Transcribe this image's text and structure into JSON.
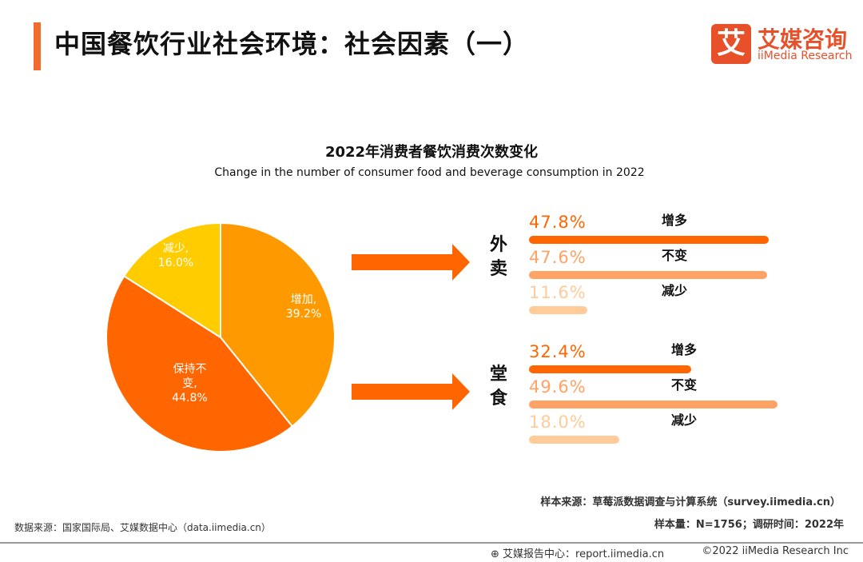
{
  "header": {
    "title": "中国餐饮行业社会环境：社会因素（一）",
    "logo_mark": "艾",
    "logo_cn": "艾媒咨询",
    "logo_en": "iiMedia Research"
  },
  "colors": {
    "accent": "#f26b2e",
    "increase": "#ff6600",
    "same": "#ffa266",
    "decrease": "#ffcb99",
    "pie_increase": "#ff9900",
    "pie_same": "#ff6600",
    "pie_decrease": "#ffcc00"
  },
  "chart_data": [
    {
      "type": "pie",
      "title": "2022年消费者餐饮消费次数变化",
      "subtitle": "Change in the number of consumer food and beverage consumption in 2022",
      "slices": [
        {
          "label": "增加,",
          "value": 39.2,
          "text": "39.2%"
        },
        {
          "label": "保持不变,",
          "value": 44.8,
          "text": "44.8%"
        },
        {
          "label": "减少,",
          "value": 16.0,
          "text": "16.0%"
        }
      ]
    },
    {
      "type": "bar",
      "orientation": "horizontal",
      "groups": [
        {
          "name": "外卖",
          "items": [
            {
              "label": "增多",
              "value": 47.8,
              "text": "47.8%"
            },
            {
              "label": "不变",
              "value": 47.6,
              "text": "47.6%"
            },
            {
              "label": "减少",
              "value": 11.6,
              "text": "11.6%"
            }
          ]
        },
        {
          "name": "堂食",
          "items": [
            {
              "label": "增多",
              "value": 32.4,
              "text": "32.4%"
            },
            {
              "label": "不变",
              "value": 49.6,
              "text": "49.6%"
            },
            {
              "label": "减少",
              "value": 18.0,
              "text": "18.0%"
            }
          ]
        }
      ]
    }
  ],
  "footer": {
    "sample_source": "样本来源：草莓派数据调查与计算系统（survey.iimedia.cn）",
    "sample_size": "样本量：N=1756；调研时间：2022年",
    "data_source": "数据来源：国家国际局、艾媒数据中心（data.iimedia.cn）",
    "report_center": "艾媒报告中心：report.iimedia.cn",
    "copyright": "©2022  iiMedia Research  Inc"
  }
}
